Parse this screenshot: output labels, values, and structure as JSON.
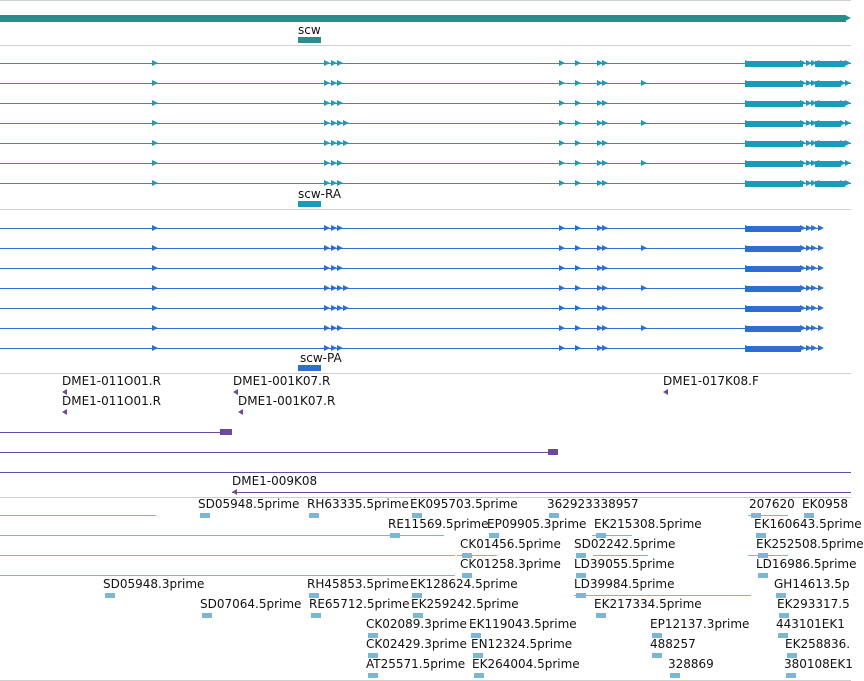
{
  "colors": {
    "gene": "#2d8b8b",
    "transcript_a": "#1a9bb8",
    "transcript_p": "#2d6fcc",
    "clone": "#6b4a9e",
    "est": "#7ab6d6",
    "divider": "#cfcfcf"
  },
  "tracks": {
    "gene": {
      "label": "scw"
    },
    "transcripts_rna": {
      "label": "scw-RA",
      "rows": 7
    },
    "transcripts_protein": {
      "label": "scw-PA",
      "rows": 7
    },
    "clones": {
      "labels": [
        "DME1-011O01.R",
        "DME1-001K07.R",
        "DME1-017K08.F",
        "DME1-011O01.R",
        "DME1-001K07.R",
        "DME1-009K08"
      ]
    },
    "est": {
      "labels": [
        "SD05948.5prime",
        "RH63335.5prime",
        "EK095703.5prime",
        "362923338957",
        "207620",
        "EK0958",
        "RE11569.5prime",
        "EP09905.3prime",
        "EK215308.5prime",
        "EK160643.5prime",
        "CK01456.5prime",
        "SD02242.5prime",
        "EK252508.5prime",
        "CK01258.3prime",
        "LD39055.5prime",
        "LD16986.5prime",
        "SD05948.3prime",
        "RH45853.5prime",
        "EK128624.5prime",
        "LD39984.5prime",
        "GH14613.5p",
        "SD07064.5prime",
        "RE65712.5prime",
        "EK259242.5prime",
        "EK217334.5prime",
        "EK293317.5",
        "CK02089.3prime",
        "EK119043.5prime",
        "EP12137.3prime",
        "443101EK1",
        "CK02429.3prime",
        "EN12324.5prime",
        "488257",
        "EK258836.",
        "AT25571.5prime",
        "EK264004.5prime",
        "328869",
        "380108EK1"
      ]
    }
  }
}
